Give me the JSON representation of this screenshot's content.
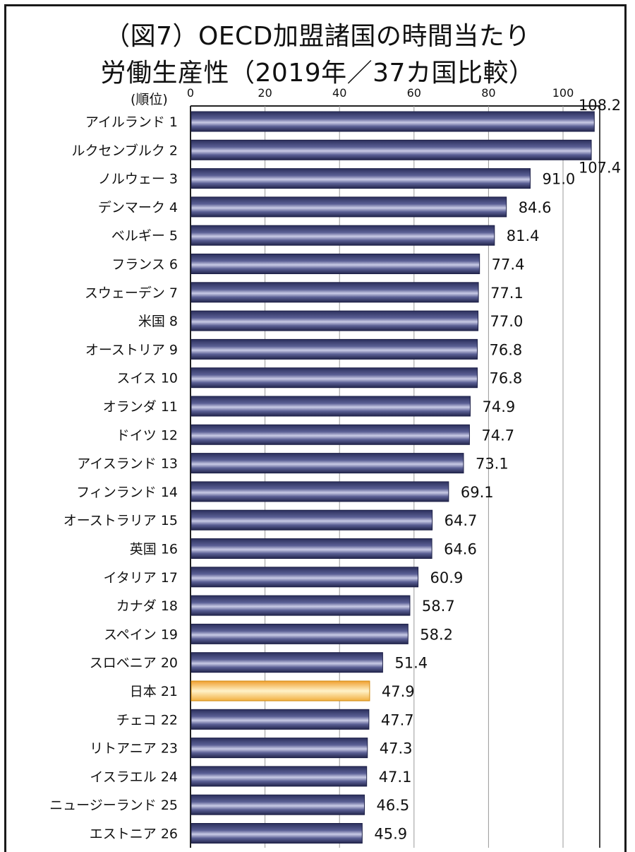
{
  "title_line1": "（図7）OECD加盟諸国の時間当たり",
  "title_line2": "労働生産性（2019年／37カ国比較）",
  "rank_header": "(順位)",
  "chart_data": {
    "type": "bar",
    "orientation": "horizontal",
    "x_ticks": [
      0,
      20,
      40,
      60,
      80,
      100
    ],
    "xlim": [
      0,
      110
    ],
    "grid": true,
    "highlight": "日本",
    "colors": {
      "bar": "#3a3f73",
      "highlight": "#f6c060",
      "grid": "#999999"
    },
    "categories": [
      {
        "name": "アイルランド",
        "rank": "1",
        "value": 108.2
      },
      {
        "name": "ルクセンブルク",
        "rank": "2",
        "value": 107.4
      },
      {
        "name": "ノルウェー",
        "rank": "3",
        "value": 91.0
      },
      {
        "name": "デンマーク",
        "rank": "4",
        "value": 84.6
      },
      {
        "name": "ベルギー",
        "rank": "5",
        "value": 81.4
      },
      {
        "name": "フランス",
        "rank": "6",
        "value": 77.4
      },
      {
        "name": "スウェーデン",
        "rank": "7",
        "value": 77.1
      },
      {
        "name": "米国",
        "rank": "8",
        "value": 77.0
      },
      {
        "name": "オーストリア",
        "rank": "9",
        "value": 76.8
      },
      {
        "name": "スイス",
        "rank": "10",
        "value": 76.8
      },
      {
        "name": "オランダ",
        "rank": "11",
        "value": 74.9
      },
      {
        "name": "ドイツ",
        "rank": "12",
        "value": 74.7
      },
      {
        "name": "アイスランド",
        "rank": "13",
        "value": 73.1
      },
      {
        "name": "フィンランド",
        "rank": "14",
        "value": 69.1
      },
      {
        "name": "オーストラリア",
        "rank": "15",
        "value": 64.7
      },
      {
        "name": "英国",
        "rank": "16",
        "value": 64.6
      },
      {
        "name": "イタリア",
        "rank": "17",
        "value": 60.9
      },
      {
        "name": "カナダ",
        "rank": "18",
        "value": 58.7
      },
      {
        "name": "スペイン",
        "rank": "19",
        "value": 58.2
      },
      {
        "name": "スロベニア",
        "rank": "20",
        "value": 51.4
      },
      {
        "name": "日本",
        "rank": "21",
        "value": 47.9
      },
      {
        "name": "チェコ",
        "rank": "22",
        "value": 47.7
      },
      {
        "name": "リトアニア",
        "rank": "23",
        "value": 47.3
      },
      {
        "name": "イスラエル",
        "rank": "24",
        "value": 47.1
      },
      {
        "name": "ニュージーランド",
        "rank": "25",
        "value": 46.5
      },
      {
        "name": "エストニア",
        "rank": "26",
        "value": 45.9
      }
    ],
    "value_labels": [
      "108.2",
      "107.4",
      "91.0",
      "84.6",
      "81.4",
      "77.4",
      "77.1",
      "77.0",
      "76.8",
      "76.8",
      "74.9",
      "74.7",
      "73.1",
      "69.1",
      "64.7",
      "64.6",
      "60.9",
      "58.7",
      "58.2",
      "51.4",
      "47.9",
      "47.7",
      "47.3",
      "47.1",
      "46.5",
      "45.9"
    ]
  }
}
